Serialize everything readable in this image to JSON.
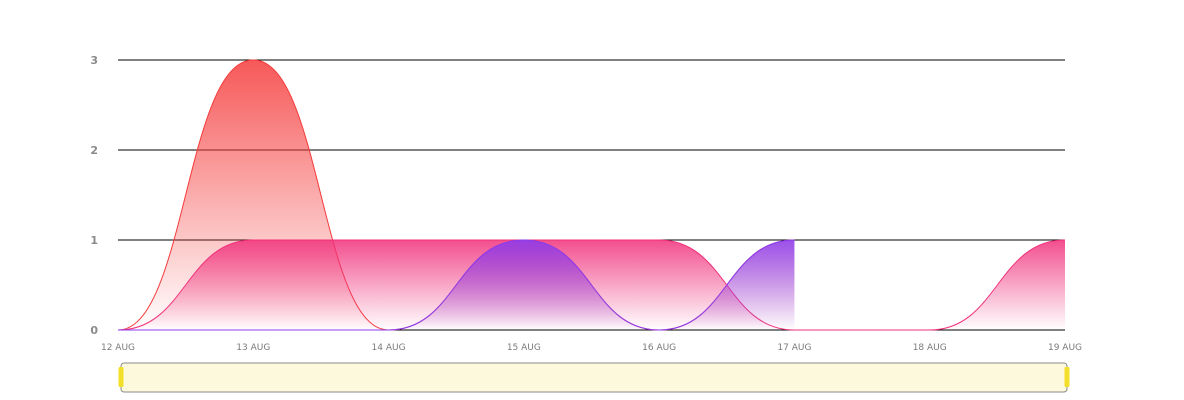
{
  "chart_data": {
    "type": "area",
    "title": "",
    "xlabel": "",
    "ylabel": "",
    "ylim": [
      0,
      3
    ],
    "yticks": [
      "0",
      "1",
      "2",
      "3"
    ],
    "x": [
      "12 AUG",
      "13 AUG",
      "14 AUG",
      "15 AUG",
      "16 AUG",
      "17 AUG",
      "18 AUG",
      "19 AUG"
    ],
    "grid": true,
    "legend": "none",
    "series": [
      {
        "color": "#f53b3b",
        "values": [
          0,
          3,
          0,
          1,
          0,
          1,
          null,
          null
        ]
      },
      {
        "color": "#f0307a",
        "values": [
          0,
          1,
          1,
          1,
          1,
          0,
          0,
          1
        ]
      },
      {
        "color": "#8a3cf0",
        "values": [
          0,
          0,
          0,
          1,
          0,
          1,
          null,
          null
        ]
      }
    ],
    "navigator": {
      "fill": "#fdf9dc",
      "border": "#8a8a8a",
      "handle_color": "#f3df29"
    }
  }
}
